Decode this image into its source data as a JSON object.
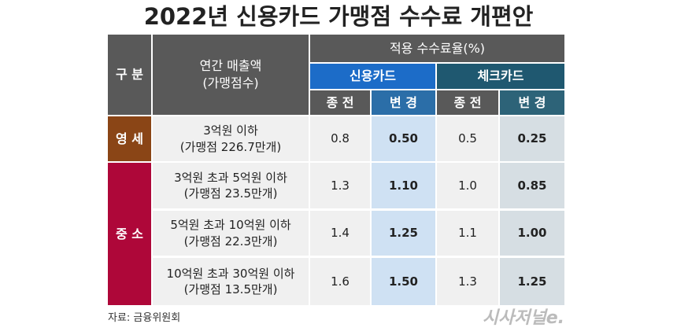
{
  "title": "2022년 신용카드 가맹점 수수료 개편안",
  "header": {
    "category": "구 분",
    "sales": [
      "연간 매출액",
      "(가맹점수)"
    ],
    "rate": "적용 수수료율(%)",
    "credit": "신용카드",
    "check": "체크카드",
    "sub": [
      "종 전",
      "변 경",
      "종 전",
      "변 경"
    ]
  },
  "groups": [
    "영 세",
    "중 소"
  ],
  "rows": [
    {
      "sales": [
        "3억원 이하",
        "(가맹점 226.7만개)"
      ],
      "rates": [
        "0.8",
        "0.50",
        "0.5",
        "0.25"
      ]
    },
    {
      "sales": [
        "3억원 초과 5억원 이하",
        "(가맹점 23.5만개)"
      ],
      "rates": [
        "1.3",
        "1.10",
        "1.0",
        "0.85"
      ]
    },
    {
      "sales": [
        "5억원 초과 10억원 이하",
        "(가맹점 22.3만개)"
      ],
      "rates": [
        "1.4",
        "1.25",
        "1.1",
        "1.00"
      ]
    },
    {
      "sales": [
        "10억원 초과 30억원 이하",
        "(가맹점 13.5만개)"
      ],
      "rates": [
        "1.6",
        "1.50",
        "1.3",
        "1.25"
      ]
    }
  ],
  "source": "자료: 금융위원회",
  "logo": "시사저널e."
}
